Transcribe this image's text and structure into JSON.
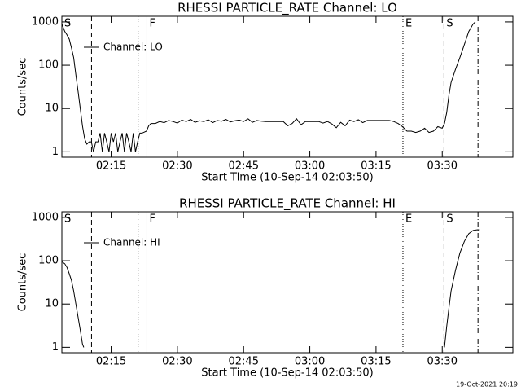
{
  "chart_data": [
    {
      "type": "line",
      "title": "RHESSI PARTICLE_RATE Channel: LO",
      "xlabel": "Start Time (10-Sep-14 02:03:50)",
      "ylabel": "Counts/sec",
      "x": [
        3.83,
        4.5,
        5,
        5.5,
        6,
        6.5,
        7,
        7.5,
        8,
        8.5,
        9,
        9.5,
        10,
        10.5,
        11,
        11.5,
        12,
        12.5,
        13,
        13.5,
        14,
        14.5,
        15,
        15.5,
        16,
        16.5,
        17,
        17.5,
        18,
        18.5,
        19,
        19.5,
        20,
        20.5,
        21,
        21.5,
        22,
        23,
        23.5,
        24,
        25,
        26,
        27,
        28,
        29,
        30,
        31,
        32,
        33,
        34,
        35,
        36,
        37,
        38,
        39,
        40,
        41,
        42,
        43,
        44,
        45,
        46,
        47,
        48,
        49,
        50,
        52,
        54,
        55,
        56,
        57,
        58,
        59,
        60,
        62,
        63,
        64,
        65,
        66,
        67,
        68,
        69,
        70,
        71,
        72,
        73,
        74,
        76,
        78,
        79,
        80,
        81,
        82,
        83,
        84,
        85,
        86,
        87,
        88,
        89,
        90,
        90.5,
        91,
        91.5,
        92,
        93,
        94,
        95,
        96,
        97,
        97.5
      ],
      "series": [
        {
          "name": "Channel: LO",
          "color": "#000000",
          "values": [
            900,
            600,
            500,
            400,
            250,
            150,
            60,
            25,
            10,
            4,
            2,
            1.5,
            1.7,
            1.7,
            1,
            1.7,
            1.7,
            2.7,
            1,
            2.7,
            1.7,
            1,
            2.7,
            1.7,
            2.7,
            1,
            1.7,
            2.7,
            1,
            2.7,
            1.7,
            1,
            2.7,
            1,
            1.7,
            2.7,
            2.7,
            3,
            4,
            4.5,
            4.5,
            5,
            4.7,
            5.3,
            5,
            4.6,
            5.4,
            5,
            5.6,
            4.8,
            5.2,
            5,
            5.5,
            4.7,
            5.3,
            5.1,
            5.6,
            4.9,
            5.2,
            5.4,
            5,
            5.8,
            4.8,
            5.3,
            5.1,
            5,
            5,
            5,
            4,
            4.5,
            5.8,
            4.2,
            5,
            5,
            5,
            4.6,
            5,
            4.4,
            3.6,
            4.8,
            4,
            5.4,
            5,
            5.5,
            4.7,
            5.3,
            5.3,
            5.3,
            5.3,
            5,
            4.5,
            3.8,
            3,
            3,
            2.8,
            3,
            3.5,
            2.8,
            3,
            3.8,
            3.5,
            4.5,
            8,
            20,
            40,
            80,
            150,
            300,
            600,
            900,
            1000
          ]
        }
      ],
      "xlim": [
        3.83,
        106
      ],
      "xticks": [
        {
          "value": 15,
          "label": "02:15"
        },
        {
          "value": 30,
          "label": "02:30"
        },
        {
          "value": 45,
          "label": "02:45"
        },
        {
          "value": 60,
          "label": "03:00"
        },
        {
          "value": 75,
          "label": "03:15"
        },
        {
          "value": 90,
          "label": "03:30"
        }
      ],
      "ylim": [
        0.75,
        1350
      ],
      "yticks": [
        1,
        10,
        100,
        1000
      ],
      "log_y": true,
      "events": [
        {
          "label": "S",
          "x": 3.83,
          "style": "solid"
        },
        {
          "x": 10.55,
          "style": "dashed"
        },
        {
          "x": 21.1,
          "style": "dotted"
        },
        {
          "label": "F",
          "x": 23.1,
          "style": "solid"
        },
        {
          "label": "E",
          "x": 81.1,
          "style": "dotted"
        },
        {
          "label": "S",
          "x": 90.4,
          "style": "dashed"
        },
        {
          "x": 98.1,
          "style": "dashdot"
        }
      ]
    },
    {
      "type": "line",
      "title": "RHESSI PARTICLE_RATE Channel: HI",
      "xlabel": "Start Time (10-Sep-14 02:03:50)",
      "ylabel": "Counts/sec",
      "x": [
        3.83,
        4.5,
        5,
        5.5,
        6,
        6.5,
        7,
        7.5,
        8,
        8.5,
        8.8,
        50,
        90.5,
        91,
        91.5,
        92,
        93,
        94,
        95,
        96,
        97,
        98,
        98.5
      ],
      "series": [
        {
          "name": "Channel: HI",
          "color": "#000000",
          "values": [
            95,
            85,
            70,
            50,
            35,
            20,
            10,
            5,
            2.5,
            1.2,
            1,
            null,
            1,
            3,
            8,
            20,
            60,
            150,
            280,
            420,
            500,
            520,
            520
          ]
        }
      ],
      "xlim": [
        3.83,
        106
      ],
      "xticks": [
        {
          "value": 15,
          "label": "02:15"
        },
        {
          "value": 30,
          "label": "02:30"
        },
        {
          "value": 45,
          "label": "02:45"
        },
        {
          "value": 60,
          "label": "03:00"
        },
        {
          "value": 75,
          "label": "03:15"
        },
        {
          "value": 90,
          "label": "03:30"
        }
      ],
      "ylim": [
        0.75,
        1350
      ],
      "yticks": [
        1,
        10,
        100,
        1000
      ],
      "log_y": true,
      "events": [
        {
          "label": "S",
          "x": 3.83,
          "style": "solid"
        },
        {
          "x": 10.55,
          "style": "dashed"
        },
        {
          "x": 21.1,
          "style": "dotted"
        },
        {
          "label": "F",
          "x": 23.1,
          "style": "solid"
        },
        {
          "label": "E",
          "x": 81.1,
          "style": "dotted"
        },
        {
          "label": "S",
          "x": 90.4,
          "style": "dashed"
        },
        {
          "x": 98.1,
          "style": "dashdot"
        }
      ]
    }
  ],
  "footer": "19-Oct-2021 20:19"
}
